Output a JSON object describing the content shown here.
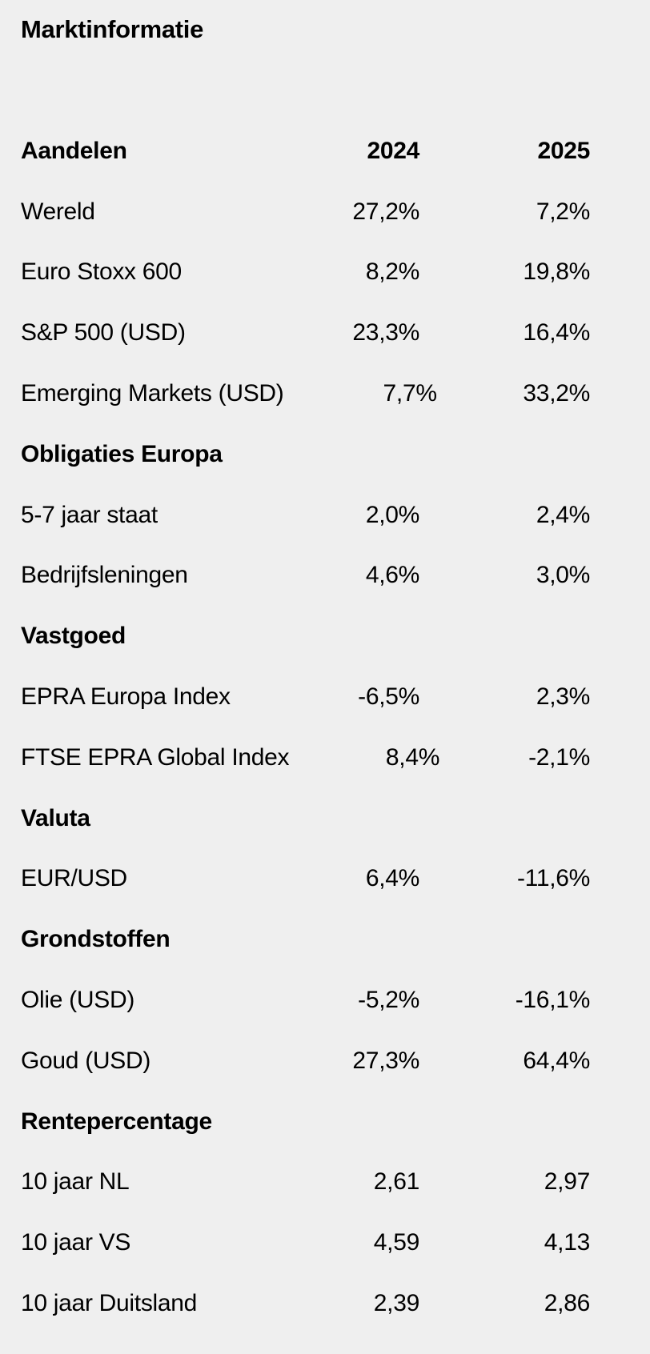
{
  "title": "Marktinformatie",
  "columns": [
    "2024",
    "2025"
  ],
  "colors": {
    "background": "#efefef",
    "text": "#000000"
  },
  "sections": [
    {
      "name": "Aandelen",
      "rows": [
        {
          "label": "Wereld",
          "v2024": "27,2%",
          "v2025": "7,2%"
        },
        {
          "label": "Euro Stoxx 600",
          "v2024": "8,2%",
          "v2025": "19,8%"
        },
        {
          "label": "S&P 500 (USD)",
          "v2024": "23,3%",
          "v2025": "16,4%"
        },
        {
          "label": "Emerging Markets (USD)",
          "v2024": "7,7%",
          "v2025": "33,2%"
        }
      ]
    },
    {
      "name": "Obligaties Europa",
      "rows": [
        {
          "label": "5-7 jaar staat",
          "v2024": "2,0%",
          "v2025": "2,4%"
        },
        {
          "label": "Bedrijfsleningen",
          "v2024": "4,6%",
          "v2025": "3,0%"
        }
      ]
    },
    {
      "name": "Vastgoed",
      "rows": [
        {
          "label": "EPRA Europa Index",
          "v2024": "-6,5%",
          "v2025": "2,3%"
        },
        {
          "label": "FTSE EPRA Global Index",
          "v2024": "8,4%",
          "v2025": "-2,1%"
        }
      ]
    },
    {
      "name": "Valuta",
      "rows": [
        {
          "label": "EUR/USD",
          "v2024": "6,4%",
          "v2025": "-11,6%"
        }
      ]
    },
    {
      "name": "Grondstoffen",
      "rows": [
        {
          "label": "Olie (USD)",
          "v2024": "-5,2%",
          "v2025": "-16,1%"
        },
        {
          "label": "Goud (USD)",
          "v2024": "27,3%",
          "v2025": "64,4%"
        }
      ]
    },
    {
      "name": "Rentepercentage",
      "rows": [
        {
          "label": "10 jaar NL",
          "v2024": "2,61",
          "v2025": "2,97"
        },
        {
          "label": "10 jaar VS",
          "v2024": "4,59",
          "v2025": "4,13"
        },
        {
          "label": "10 jaar Duitsland",
          "v2024": "2,39",
          "v2025": "2,86"
        }
      ]
    }
  ]
}
